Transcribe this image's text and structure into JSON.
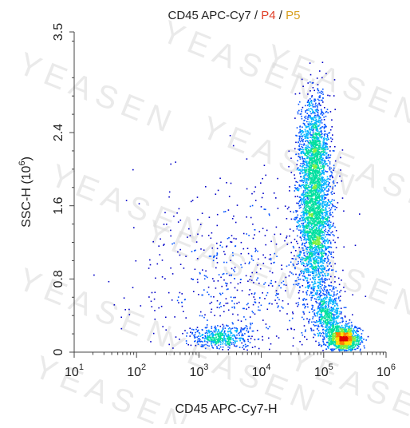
{
  "chart_data": {
    "type": "scatter",
    "title_parts": [
      {
        "text": "CD45 APC-Cy7 / ",
        "color": "#222222"
      },
      {
        "text": "P4",
        "color": "#e0402a"
      },
      {
        "text": " / ",
        "color": "#222222"
      },
      {
        "text": "P5",
        "color": "#d9a020"
      }
    ],
    "xlabel": "CD45 APC-Cy7-H",
    "ylabel_base": "SSC-H  (10",
    "ylabel_sup": "6",
    "ylabel_end": ")",
    "x_scale": "log",
    "xlim": [
      10,
      1000000
    ],
    "x_ticks": [
      {
        "value": 10,
        "base": "10",
        "exp": "1"
      },
      {
        "value": 100,
        "base": "10",
        "exp": "2"
      },
      {
        "value": 1000,
        "base": "10",
        "exp": "3"
      },
      {
        "value": 10000,
        "base": "10",
        "exp": "4"
      },
      {
        "value": 100000,
        "base": "10",
        "exp": "5"
      },
      {
        "value": 1000000,
        "base": "10",
        "exp": "6"
      }
    ],
    "ylim": [
      0,
      3.5
    ],
    "y_ticks": [
      {
        "value": 0,
        "label": "0"
      },
      {
        "value": 0.8,
        "label": "0.8"
      },
      {
        "value": 1.6,
        "label": "1.6"
      },
      {
        "value": 2.4,
        "label": "2.4"
      },
      {
        "value": 3.5,
        "label": "3.5"
      }
    ],
    "grid": false,
    "colormap": [
      "#0000c8",
      "#0050ff",
      "#00b4ff",
      "#00e0a0",
      "#80f040",
      "#ffe000",
      "#ff8000",
      "#e00000"
    ],
    "populations": [
      {
        "log10_x_center": 4.85,
        "y_center": 1.45,
        "log10_x_spread": 0.14,
        "y_spread": 0.48,
        "count": 2600
      },
      {
        "log10_x_center": 4.83,
        "y_center": 2.25,
        "log10_x_spread": 0.12,
        "y_spread": 0.3,
        "count": 900
      },
      {
        "log10_x_center": 5.32,
        "y_center": 0.15,
        "log10_x_spread": 0.12,
        "y_spread": 0.07,
        "count": 1100
      },
      {
        "log10_x_center": 5.08,
        "y_center": 0.38,
        "log10_x_spread": 0.1,
        "y_spread": 0.15,
        "count": 500
      },
      {
        "log10_x_center": 3.35,
        "y_center": 0.17,
        "log10_x_spread": 0.22,
        "y_spread": 0.06,
        "count": 420
      },
      {
        "log10_x_center": 3.6,
        "y_center": 0.75,
        "log10_x_spread": 0.75,
        "y_spread": 0.6,
        "count": 650
      }
    ],
    "watermark_text": "YEASEN"
  }
}
